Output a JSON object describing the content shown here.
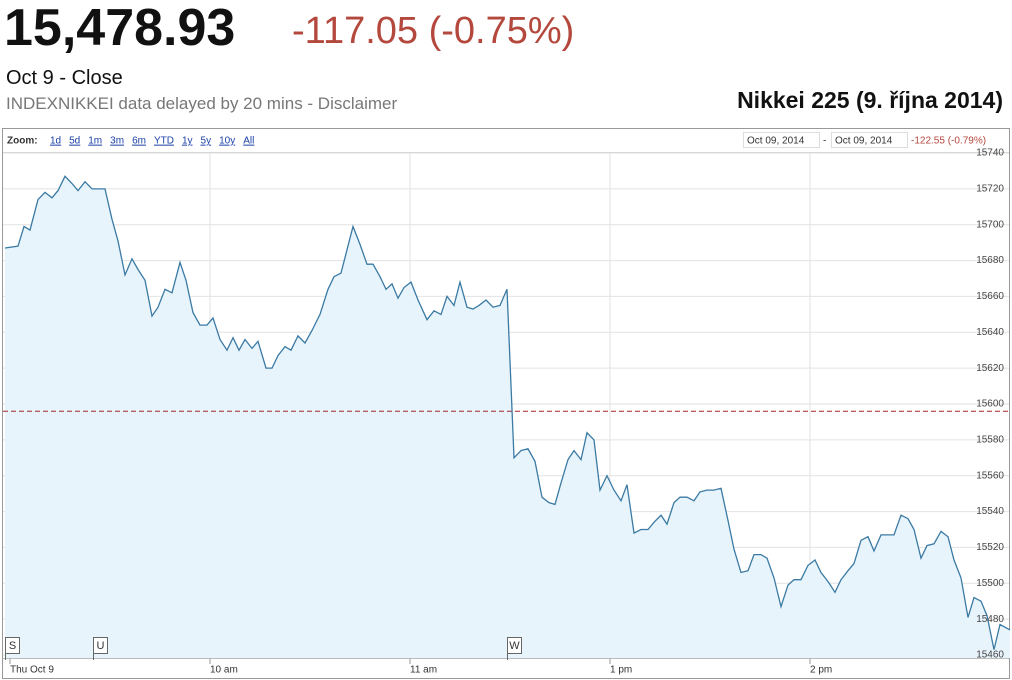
{
  "header": {
    "price": "15,478.93",
    "change": "-117.05 (-0.75%)",
    "status": "Oct 9 - Close",
    "source": "INDEXNIKKEI data delayed by 20 mins - Disclaimer"
  },
  "toolbar": {
    "zoom_label": "Zoom:",
    "zoom_options": [
      "1d",
      "5d",
      "1m",
      "3m",
      "6m",
      "YTD",
      "1y",
      "5y",
      "10y",
      "All"
    ],
    "range_start": "Oct 09, 2014",
    "range_separator": "-",
    "range_end": "Oct 09, 2014",
    "range_change": "-122.55 (-0.79%)"
  },
  "chart_data": {
    "type": "area",
    "title": "Nikkei 225 (9. října 2014)",
    "x": [
      -1.5,
      2.4,
      4.2,
      6,
      8.4,
      10.5,
      12.6,
      14.4,
      16.5,
      18.6,
      20.4,
      22.5,
      24.6,
      26.4,
      28.5,
      30.6,
      32.4,
      34.5,
      36.6,
      38.4,
      40.5,
      42.6,
      44.4,
      46.5,
      48.6,
      51,
      52.8,
      54.9,
      57,
      59.1,
      60.9,
      63,
      65.1,
      66.9,
      68.7,
      70.5,
      72.6,
      74.4,
      76.8,
      78.6,
      80.4,
      82.5,
      84.3,
      86.4,
      88.5,
      90.6,
      93,
      95.4,
      97.2,
      99.3,
      101.1,
      102.9,
      105,
      107.1,
      108.9,
      111,
      112.8,
      114.6,
      116.4,
      118.2,
      120.3,
      122.4,
      125.1,
      127.2,
      129.3,
      131.1,
      133.2,
      135,
      137.1,
      138.9,
      140.7,
      142.8,
      144.9,
      147,
      149.1,
      151.2,
      153.3,
      155.4,
      157.5,
      159.6,
      161.7,
      163.5,
      165.3,
      167.4,
      169.2,
      171.3,
      173.1,
      175.2,
      177,
      179.1,
      181.2,
      183.3,
      185.1,
      187.2,
      189.3,
      191.4,
      193.2,
      195.3,
      197.1,
      199.2,
      201,
      203.1,
      205.2,
      207,
      209.1,
      211.2,
      213.3,
      215.4,
      217.2,
      219.3,
      221.4,
      223.2,
      225.3,
      227.1,
      229.2,
      231.3,
      233.4,
      235.2,
      237.3,
      239.4,
      241.5,
      243.3,
      245.4,
      247.5,
      249.3,
      251.4,
      253.2,
      255.3,
      257.4,
      259.2,
      261.3,
      263.4,
      265.2,
      267.3,
      269.4,
      271.2,
      273.3,
      275.1,
      277.2,
      279.3,
      281.4,
      283.2,
      285.3,
      287.4,
      289.2,
      291.3,
      293.1,
      295.2,
      297,
      300
    ],
    "values": [
      15687,
      15688,
      15699,
      15697,
      15714,
      15718,
      15715,
      15719,
      15727,
      15723,
      15719,
      15724,
      15720,
      15720,
      15720,
      15703,
      15691,
      15672,
      15681,
      15675,
      15669,
      15649,
      15654,
      15664,
      15662,
      15679,
      15669,
      15651,
      15644,
      15644,
      15648,
      15636,
      15630,
      15637,
      15630,
      15636,
      15631,
      15635,
      15620,
      15620,
      15627,
      15632,
      15630,
      15638,
      15634,
      15641,
      15650,
      15664,
      15671,
      15673,
      15686,
      15699,
      15689,
      15678,
      15678,
      15671,
      15664,
      15667,
      15659,
      15665,
      15668,
      15658,
      15647,
      15652,
      15650,
      15660,
      15655,
      15668,
      15654,
      15653,
      15655,
      15658,
      15654,
      15655,
      15664,
      15570,
      15574,
      15575,
      15568,
      15548,
      15545,
      15544,
      15556,
      15569,
      15574,
      15569,
      15584,
      15580,
      15552,
      15560,
      15552,
      15546,
      15555,
      15528,
      15530,
      15530,
      15534,
      15538,
      15533,
      15545,
      15548,
      15548,
      15546,
      15551,
      15552,
      15552,
      15553,
      15535,
      15519,
      15506,
      15507,
      15516,
      15516,
      15514,
      15503,
      15487,
      15499,
      15502,
      15502,
      15510,
      15513,
      15506,
      15501,
      15495,
      15502,
      15507,
      15511,
      15524,
      15526,
      15518,
      15527,
      15527,
      15527,
      15538,
      15536,
      15530,
      15514,
      15521,
      15522,
      15529,
      15526,
      15513,
      15503,
      15481,
      15492,
      15490,
      15482,
      15463,
      15477,
      15474
    ],
    "color": "#3b7aa3",
    "fill_color": "#e8f4fc",
    "reference_line": 15595.98,
    "reference_color": "#a0282d",
    "xlim": [
      -1.5,
      300
    ],
    "xticks": [
      {
        "value": 0,
        "label": "Thu Oct 9"
      },
      {
        "value": 60,
        "label": "10 am"
      },
      {
        "value": 120,
        "label": "11 am"
      },
      {
        "value": 180,
        "label": "1 pm"
      },
      {
        "value": 240,
        "label": "2 pm"
      }
    ],
    "ylim": [
      15460,
      15740
    ],
    "yticks": [
      15460,
      15480,
      15500,
      15520,
      15540,
      15560,
      15580,
      15600,
      15620,
      15640,
      15660,
      15680,
      15700,
      15720,
      15740
    ],
    "grid": true,
    "annotations": [
      "S",
      "U",
      "W"
    ]
  }
}
